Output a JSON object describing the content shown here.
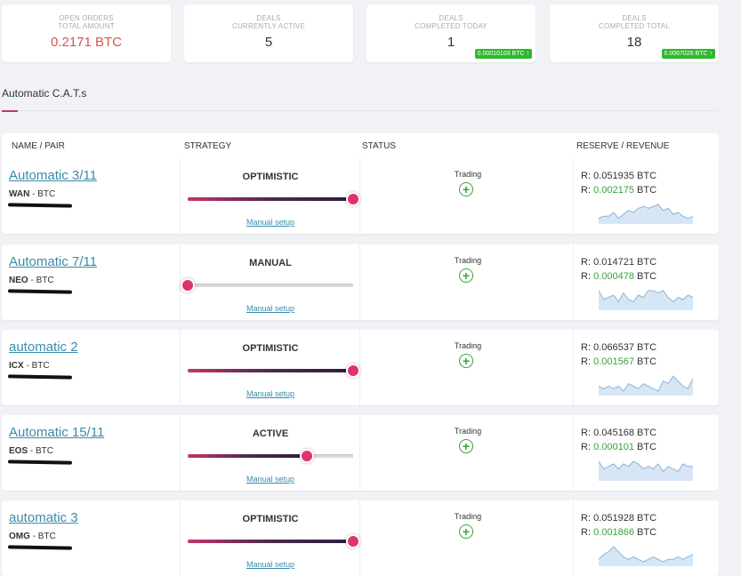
{
  "stats": [
    {
      "label1": "OPEN ORDERS",
      "label2": "TOTAL AMOUNT",
      "value": "0.2171 BTC",
      "badge": ""
    },
    {
      "label1": "DEALS",
      "label2": "CURRENTLY ACTIVE",
      "value": "5",
      "badge": ""
    },
    {
      "label1": "DEALS",
      "label2": "COMPLETED TODAY",
      "value": "1",
      "badge": "0.00010103 BTC ↑"
    },
    {
      "label1": "DEALS",
      "label2": "COMPLETED TOTAL",
      "value": "18",
      "badge": "0.0067026 BTC ↑"
    }
  ],
  "section_title": "Automatic C.A.T.s",
  "table_headers": {
    "name": "NAME / PAIR",
    "strategy": "STRATEGY",
    "status": "STATUS",
    "reserve": "RESERVE / REVENUE"
  },
  "colors": {
    "accent": "#c8326a",
    "link": "#3a8bab",
    "green": "#3aa23a",
    "red": "#d9534f"
  },
  "rows": [
    {
      "name": "Automatic 3/11",
      "pair_base": "WAN",
      "pair_quote": "BTC",
      "strategy": "OPTIMISTIC",
      "slider_level": 1.0,
      "manual": "Manual setup",
      "status": "Trading",
      "status_icon": "plus-circle-icon",
      "reserve_prefix": "R: ",
      "reserve": "0.051935",
      "reserve_unit": "BTC",
      "revenue_prefix": "R: ",
      "revenue": "0.002175",
      "revenue_unit": "BTC",
      "spark": [
        2,
        3,
        3,
        5,
        2,
        4,
        6,
        5,
        7,
        8,
        7,
        8,
        9,
        6,
        7,
        4,
        5,
        3,
        2,
        3
      ]
    },
    {
      "name": "Automatic 7/11",
      "pair_base": "NEO",
      "pair_quote": "BTC",
      "strategy": "MANUAL",
      "slider_level": 0.0,
      "manual": "Manual setup",
      "status": "Trading",
      "status_icon": "plus-circle-icon",
      "reserve_prefix": "R: ",
      "reserve": "0.014721",
      "reserve_unit": "BTC",
      "revenue_prefix": "R: ",
      "revenue": "0.000478",
      "revenue_unit": "BTC",
      "spark": [
        8,
        4,
        5,
        6,
        3,
        7,
        4,
        3,
        6,
        5,
        8,
        8,
        7,
        8,
        5,
        3,
        5,
        4,
        6,
        5
      ]
    },
    {
      "name": "automatic 2",
      "pair_base": "ICX",
      "pair_quote": "BTC",
      "strategy": "OPTIMISTIC",
      "slider_level": 1.0,
      "manual": "Manual setup",
      "status": "Trading",
      "status_icon": "plus-circle-icon",
      "reserve_prefix": "R: ",
      "reserve": "0.066537",
      "reserve_unit": "BTC",
      "revenue_prefix": "R: ",
      "revenue": "0.001567",
      "revenue_unit": "BTC",
      "spark": [
        3,
        2,
        3,
        2,
        3,
        1,
        4,
        3,
        2,
        4,
        3,
        2,
        1,
        5,
        4,
        7,
        5,
        3,
        2,
        6
      ]
    },
    {
      "name": "Automatic 15/11",
      "pair_base": "EOS",
      "pair_quote": "BTC",
      "strategy": "ACTIVE",
      "slider_level": 0.72,
      "manual": "Manual setup",
      "status": "Trading",
      "status_icon": "plus-circle-icon",
      "reserve_prefix": "R: ",
      "reserve": "0.045168",
      "reserve_unit": "BTC",
      "revenue_prefix": "R: ",
      "revenue": "0.000101",
      "revenue_unit": "BTC",
      "spark": [
        7,
        4,
        5,
        6,
        4,
        6,
        5,
        7,
        6,
        4,
        5,
        4,
        6,
        3,
        5,
        4,
        3,
        6,
        5,
        5
      ]
    },
    {
      "name": "automatic 3",
      "pair_base": "OMG",
      "pair_quote": "BTC",
      "strategy": "OPTIMISTIC",
      "slider_level": 1.0,
      "manual": "Manual setup",
      "status": "Trading",
      "status_icon": "plus-circle-icon",
      "reserve_prefix": "R: ",
      "reserve": "0.051928",
      "reserve_unit": "BTC",
      "revenue_prefix": "R: ",
      "revenue": "0.001866",
      "revenue_unit": "BTC",
      "spark": [
        2,
        4,
        5,
        7,
        5,
        3,
        2,
        3,
        2,
        1,
        2,
        3,
        2,
        1,
        2,
        2,
        3,
        2,
        3,
        4
      ]
    }
  ]
}
